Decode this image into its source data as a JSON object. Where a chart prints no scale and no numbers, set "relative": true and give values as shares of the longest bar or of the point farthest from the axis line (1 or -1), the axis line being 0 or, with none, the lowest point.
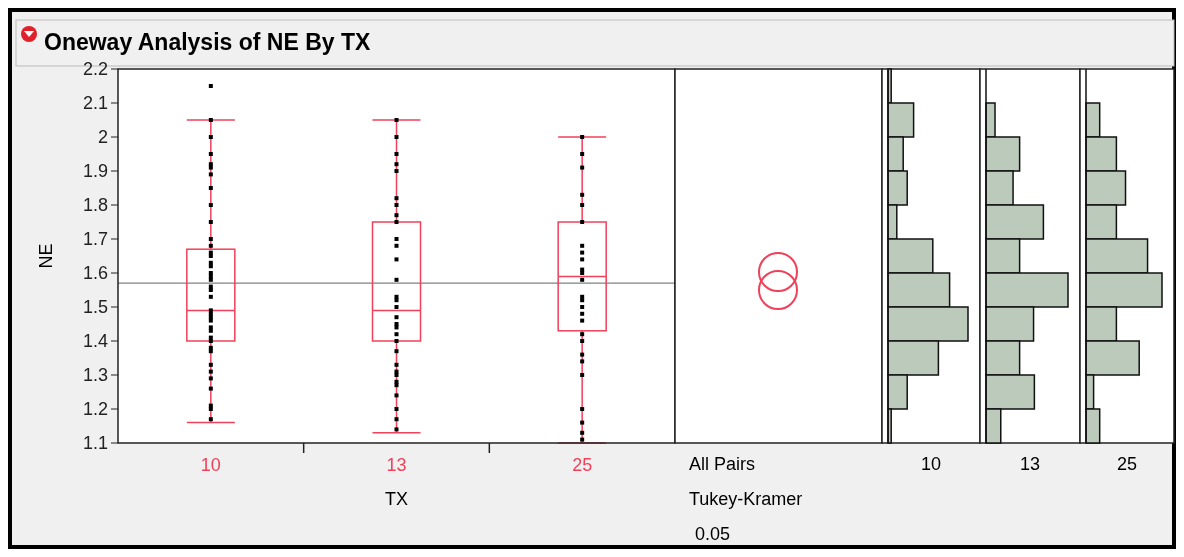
{
  "chart_data": [
    {
      "type": "box",
      "title": "Oneway Analysis of NE By TX",
      "xlabel": "TX",
      "ylabel": "NE",
      "categories": [
        "10",
        "13",
        "25"
      ],
      "ylim": [
        1.1,
        2.2
      ],
      "yticks": [
        1.1,
        1.2,
        1.3,
        1.4,
        1.5,
        1.6,
        1.7,
        1.8,
        1.9,
        2,
        2.1,
        2.2
      ],
      "grid": false,
      "marker": "square",
      "ref_lines": [
        {
          "axis": "y",
          "value": 1.57,
          "color": "#808080"
        }
      ],
      "series": [
        {
          "type": "box",
          "color": "#f0405a",
          "boxes": [
            {
              "low": 1.16,
              "q1": 1.4,
              "median": 1.49,
              "q3": 1.67,
              "high": 2.05
            },
            {
              "low": 1.13,
              "q1": 1.4,
              "median": 1.49,
              "q3": 1.75,
              "high": 2.05
            },
            {
              "low": 1.1,
              "q1": 1.43,
              "median": 1.59,
              "q3": 1.75,
              "high": 2.0
            }
          ]
        },
        {
          "type": "scatter",
          "color": "#000000",
          "x": [
            "10",
            "10",
            "10",
            "10",
            "10",
            "10",
            "10",
            "10",
            "10",
            "10",
            "10",
            "10",
            "10",
            "10",
            "10",
            "10",
            "10",
            "10",
            "10",
            "10",
            "10",
            "10",
            "10",
            "10",
            "10",
            "10",
            "10",
            "10",
            "10",
            "10",
            "10",
            "10",
            "10",
            "10",
            "10",
            "10",
            "10",
            "10",
            "10",
            "13",
            "13",
            "13",
            "13",
            "13",
            "13",
            "13",
            "13",
            "13",
            "13",
            "13",
            "13",
            "13",
            "13",
            "13",
            "13",
            "13",
            "13",
            "13",
            "13",
            "13",
            "13",
            "13",
            "13",
            "13",
            "13",
            "13",
            "13",
            "13",
            "13",
            "13",
            "25",
            "25",
            "25",
            "25",
            "25",
            "25",
            "25",
            "25",
            "25",
            "25",
            "25",
            "25",
            "25",
            "25",
            "25",
            "25",
            "25",
            "25",
            "25",
            "25",
            "25",
            "25",
            "25",
            "25",
            "25",
            "25"
          ],
          "values": [
            2.15,
            2.05,
            2.0,
            1.95,
            1.92,
            1.91,
            1.89,
            1.85,
            1.8,
            1.75,
            1.7,
            1.68,
            1.66,
            1.65,
            1.63,
            1.62,
            1.6,
            1.59,
            1.58,
            1.56,
            1.55,
            1.53,
            1.49,
            1.48,
            1.47,
            1.46,
            1.44,
            1.43,
            1.41,
            1.4,
            1.38,
            1.37,
            1.33,
            1.31,
            1.29,
            1.26,
            1.21,
            1.2,
            1.17,
            2.05,
            2.0,
            1.95,
            1.92,
            1.9,
            1.82,
            1.8,
            1.77,
            1.75,
            1.7,
            1.68,
            1.64,
            1.58,
            1.53,
            1.52,
            1.5,
            1.47,
            1.45,
            1.44,
            1.42,
            1.4,
            1.37,
            1.33,
            1.31,
            1.3,
            1.28,
            1.27,
            1.24,
            1.2,
            1.17,
            1.14,
            2.0,
            1.95,
            1.91,
            1.83,
            1.8,
            1.75,
            1.68,
            1.66,
            1.64,
            1.61,
            1.6,
            1.58,
            1.53,
            1.52,
            1.5,
            1.48,
            1.46,
            1.42,
            1.4,
            1.36,
            1.34,
            1.3,
            1.2,
            1.16,
            1.13,
            1.11
          ]
        }
      ]
    },
    {
      "type": "other",
      "annotations": [
        "All Pairs",
        "Tukey-Kramer",
        "0.05"
      ]
    },
    {
      "type": "bar",
      "orientation": "horizontal",
      "relative": true,
      "xlabel": "10",
      "color": "#bccabb",
      "categories": [
        null,
        null,
        null,
        null,
        null,
        null,
        null,
        null,
        null,
        null,
        null
      ],
      "values": [
        0.04,
        0.32,
        0.19,
        0.24,
        0.11,
        0.56,
        0.77,
        1,
        0.63,
        0.24,
        0.04
      ]
    },
    {
      "type": "bar",
      "orientation": "horizontal",
      "relative": true,
      "xlabel": "13",
      "color": "#bccabb",
      "categories": [
        null,
        null,
        null,
        null,
        null,
        null,
        null,
        null,
        null,
        null,
        null
      ],
      "values": [
        null,
        0.11,
        0.41,
        0.33,
        0.7,
        0.41,
        1,
        0.58,
        0.41,
        0.59,
        0.18
      ]
    },
    {
      "type": "bar",
      "orientation": "horizontal",
      "relative": true,
      "xlabel": "25",
      "color": "#bccabb",
      "categories": [
        null,
        null,
        null,
        null,
        null,
        null,
        null,
        null,
        null,
        null,
        null
      ],
      "values": [
        null,
        0.18,
        0.4,
        0.52,
        0.4,
        0.81,
        1,
        0.4,
        0.7,
        0.1,
        0.18
      ]
    }
  ]
}
